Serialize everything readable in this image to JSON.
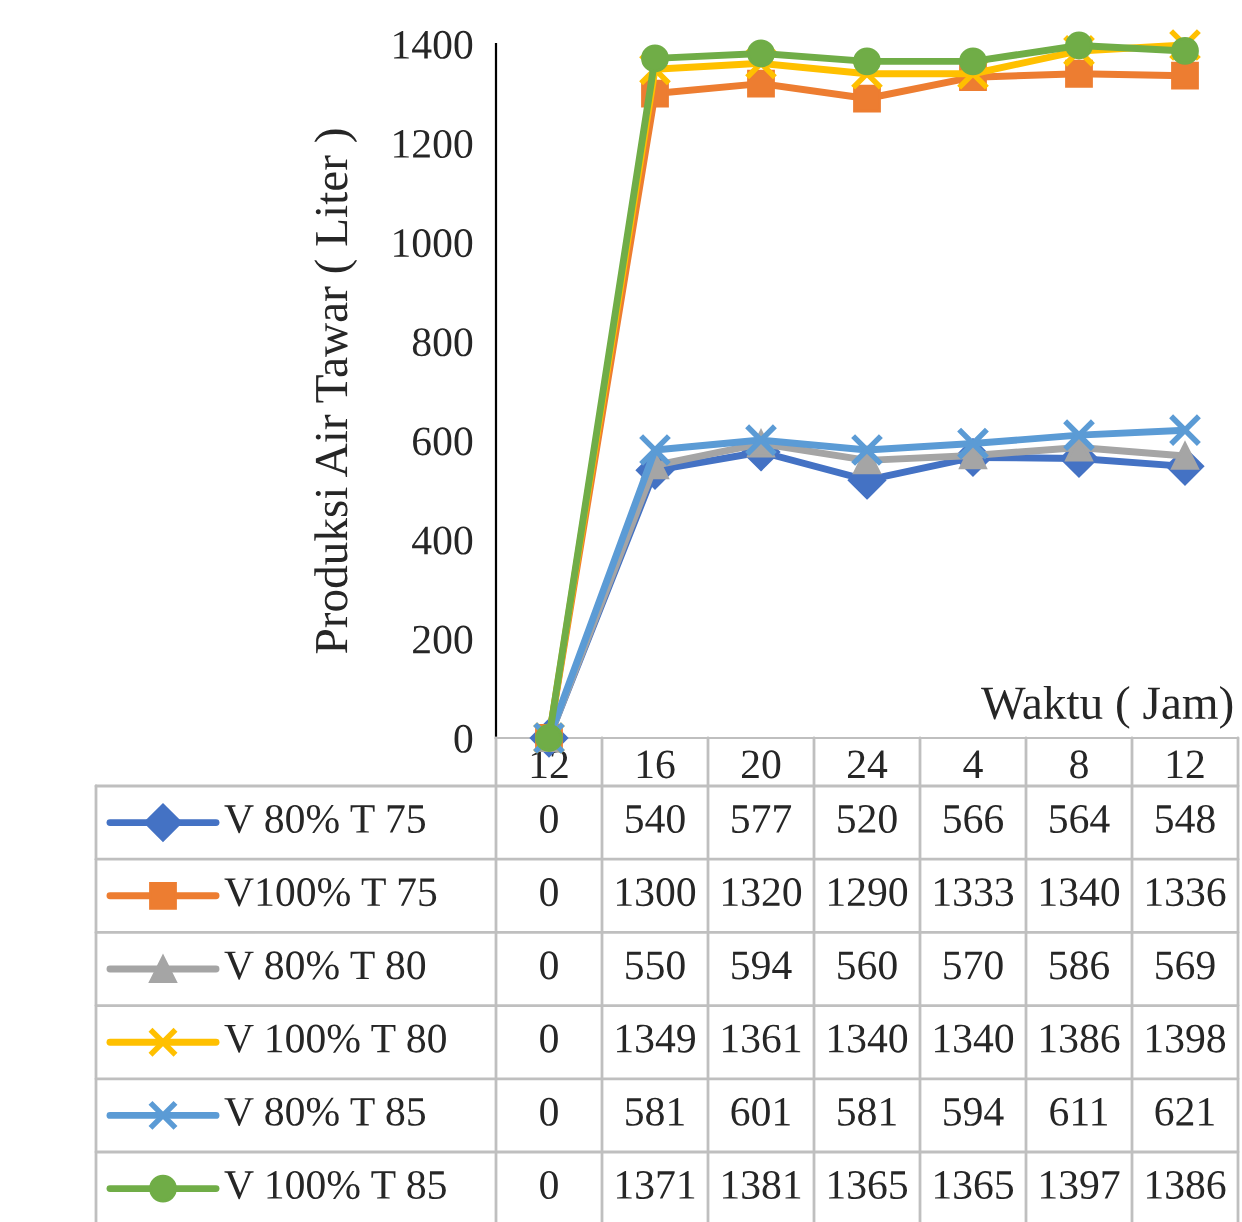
{
  "chart_data": {
    "type": "line",
    "xlabel": "Waktu ( Jam)",
    "ylabel": "Produksi Air Tawar ( Liter )",
    "categories": [
      "12",
      "16",
      "20",
      "24",
      "4",
      "8",
      "12"
    ],
    "ylim": [
      0,
      1400
    ],
    "yticks": [
      0,
      200,
      400,
      600,
      800,
      1000,
      1200,
      1400
    ],
    "data_labels": true,
    "legend": "bottom",
    "series": [
      {
        "name": "V 80% T 75",
        "color": "#4472c4",
        "marker": "diamond",
        "values": [
          0,
          540,
          577,
          520,
          566,
          564,
          548
        ]
      },
      {
        "name": "V100% T 75",
        "color": "#ed7d31",
        "marker": "square",
        "values": [
          0,
          1300,
          1320,
          1290,
          1333,
          1340,
          1336
        ]
      },
      {
        "name": "V 80% T 80",
        "color": "#a5a5a5",
        "marker": "triangle",
        "values": [
          0,
          550,
          594,
          560,
          570,
          586,
          569
        ]
      },
      {
        "name": "V 100% T 80",
        "color": "#ffc000",
        "marker": "cross",
        "values": [
          0,
          1349,
          1361,
          1340,
          1340,
          1386,
          1398
        ]
      },
      {
        "name": "V 80% T 85",
        "color": "#5b9bd5",
        "marker": "cross",
        "values": [
          0,
          581,
          601,
          581,
          594,
          611,
          621
        ]
      },
      {
        "name": "V 100% T 85",
        "color": "#70ad47",
        "marker": "circle",
        "values": [
          0,
          1371,
          1381,
          1365,
          1365,
          1397,
          1386
        ]
      }
    ]
  }
}
